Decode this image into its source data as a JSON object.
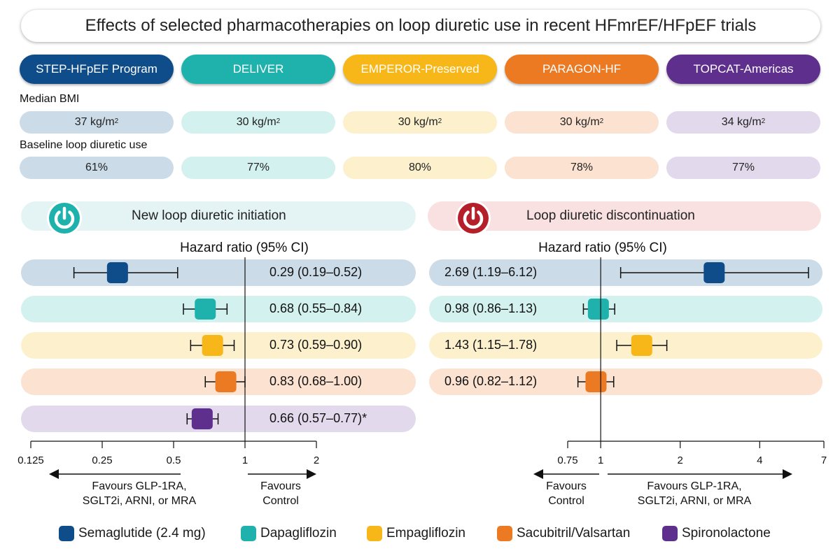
{
  "title": "Effects of selected pharmacotherapies on loop diuretic use in recent HFmrEF/HFpEF trials",
  "trials": [
    {
      "name": "STEP-HFpEF Program",
      "bmi": "37 kg/m",
      "loop_use": "61%"
    },
    {
      "name": "DELIVER",
      "bmi": "30 kg/m",
      "loop_use": "77%"
    },
    {
      "name": "EMPEROR-Preserved",
      "bmi": "30 kg/m",
      "loop_use": "80%"
    },
    {
      "name": "PARAGON-HF",
      "bmi": "30 kg/m",
      "loop_use": "78%"
    },
    {
      "name": "TOPCAT-Americas",
      "bmi": "34 kg/m",
      "loop_use": "77%"
    }
  ],
  "bmi_unit_sup": "2",
  "labels": {
    "median_bmi": "Median BMI",
    "baseline_loop": "Baseline loop diuretic use"
  },
  "colors": {
    "semaglutide": "#0f4d8a",
    "dapagliflozin": "#1fb2ad",
    "empagliflozin": "#f7b718",
    "sacubitril_valsartan": "#ec7a23",
    "spironolactone": "#5f2f8e"
  },
  "panels": {
    "left_title": "New loop diuretic initiation",
    "right_title": "Loop diuretic discontinuation",
    "left_icon": "power-icon",
    "right_icon": "power-icon"
  },
  "chart_data": [
    {
      "type": "forest",
      "title": "New loop diuretic initiation",
      "axis_title": "Hazard ratio (95% CI)",
      "scale": "log",
      "xlim": [
        0.125,
        2
      ],
      "ticks": [
        "0.125",
        "0.25",
        "0.5",
        "1",
        "2"
      ],
      "tick_values": [
        0.125,
        0.25,
        0.5,
        1,
        2
      ],
      "favours_left": [
        "Favours GLP-1RA,",
        "SGLT2i, ARNI, or MRA"
      ],
      "favours_right": [
        "Favours",
        "Control"
      ],
      "rows": [
        {
          "drug": "Semaglutide (2.4 mg)",
          "hr": 0.29,
          "lo": 0.19,
          "hi": 0.52,
          "label": "0.29 (0.19–0.52)"
        },
        {
          "drug": "Dapagliflozin",
          "hr": 0.68,
          "lo": 0.55,
          "hi": 0.84,
          "label": "0.68 (0.55–0.84)"
        },
        {
          "drug": "Empagliflozin",
          "hr": 0.73,
          "lo": 0.59,
          "hi": 0.9,
          "label": "0.73 (0.59–0.90)"
        },
        {
          "drug": "Sacubitril/Valsartan",
          "hr": 0.83,
          "lo": 0.68,
          "hi": 1.0,
          "label": "0.83 (0.68–1.00)"
        },
        {
          "drug": "Spironolactone",
          "hr": 0.66,
          "lo": 0.57,
          "hi": 0.77,
          "label": "0.66 (0.57–0.77)*"
        }
      ]
    },
    {
      "type": "forest",
      "title": "Loop diuretic discontinuation",
      "axis_title": "Hazard ratio (95% CI)",
      "scale": "log",
      "xlim": [
        0.75,
        7
      ],
      "ticks": [
        "0.75",
        "1",
        "2",
        "4",
        "7"
      ],
      "tick_values": [
        0.75,
        1,
        2,
        4,
        7
      ],
      "favours_left": [
        "Favours",
        "Control"
      ],
      "favours_right": [
        "Favours GLP-1RA,",
        "SGLT2i, ARNI, or MRA"
      ],
      "rows": [
        {
          "drug": "Semaglutide (2.4 mg)",
          "hr": 2.69,
          "lo": 1.19,
          "hi": 6.12,
          "label": "2.69 (1.19–6.12)"
        },
        {
          "drug": "Dapagliflozin",
          "hr": 0.98,
          "lo": 0.86,
          "hi": 1.13,
          "label": "0.98 (0.86–1.13)"
        },
        {
          "drug": "Empagliflozin",
          "hr": 1.43,
          "lo": 1.15,
          "hi": 1.78,
          "label": "1.43 (1.15–1.78)"
        },
        {
          "drug": "Sacubitril/Valsartan",
          "hr": 0.96,
          "lo": 0.82,
          "hi": 1.12,
          "label": "0.96 (0.82–1.12)"
        }
      ]
    }
  ],
  "legend": [
    {
      "label": "Semaglutide (2.4 mg)",
      "color": "#0f4d8a"
    },
    {
      "label": "Dapagliflozin",
      "color": "#1fb2ad"
    },
    {
      "label": "Empagliflozin",
      "color": "#f7b718"
    },
    {
      "label": "Sacubitril/Valsartan",
      "color": "#ec7a23"
    },
    {
      "label": "Spironolactone",
      "color": "#5f2f8e"
    }
  ]
}
